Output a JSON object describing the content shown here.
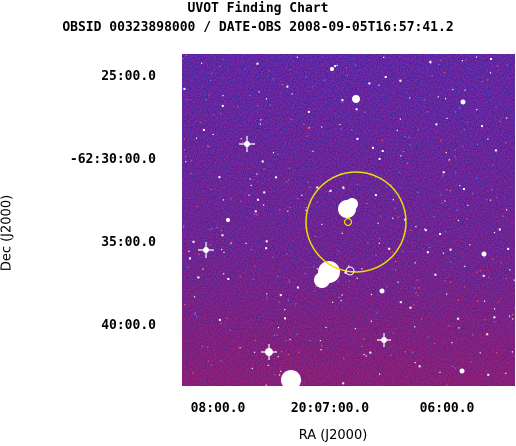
{
  "title": {
    "line1": "UVOT Finding Chart",
    "line2": "OBSID 00323898000 / DATE-OBS 2008-09-05T16:57:41.2"
  },
  "axes": {
    "xlabel": "RA (J2000)",
    "ylabel": "Dec (J2000)",
    "dec_ticks": [
      "25:00.0",
      "-62:30:00.0",
      "35:00.0",
      "40:00.0"
    ],
    "ra_ticks": [
      "08:00.0",
      "20:07:00.0",
      "06:00.0"
    ]
  },
  "image": {
    "colors": {
      "background": "#2a1b8c",
      "noise_blue": "#1c22e0",
      "noise_red": "#c41a2a",
      "stars": "#ffffff",
      "error_circle": "#e8e000"
    }
  }
}
